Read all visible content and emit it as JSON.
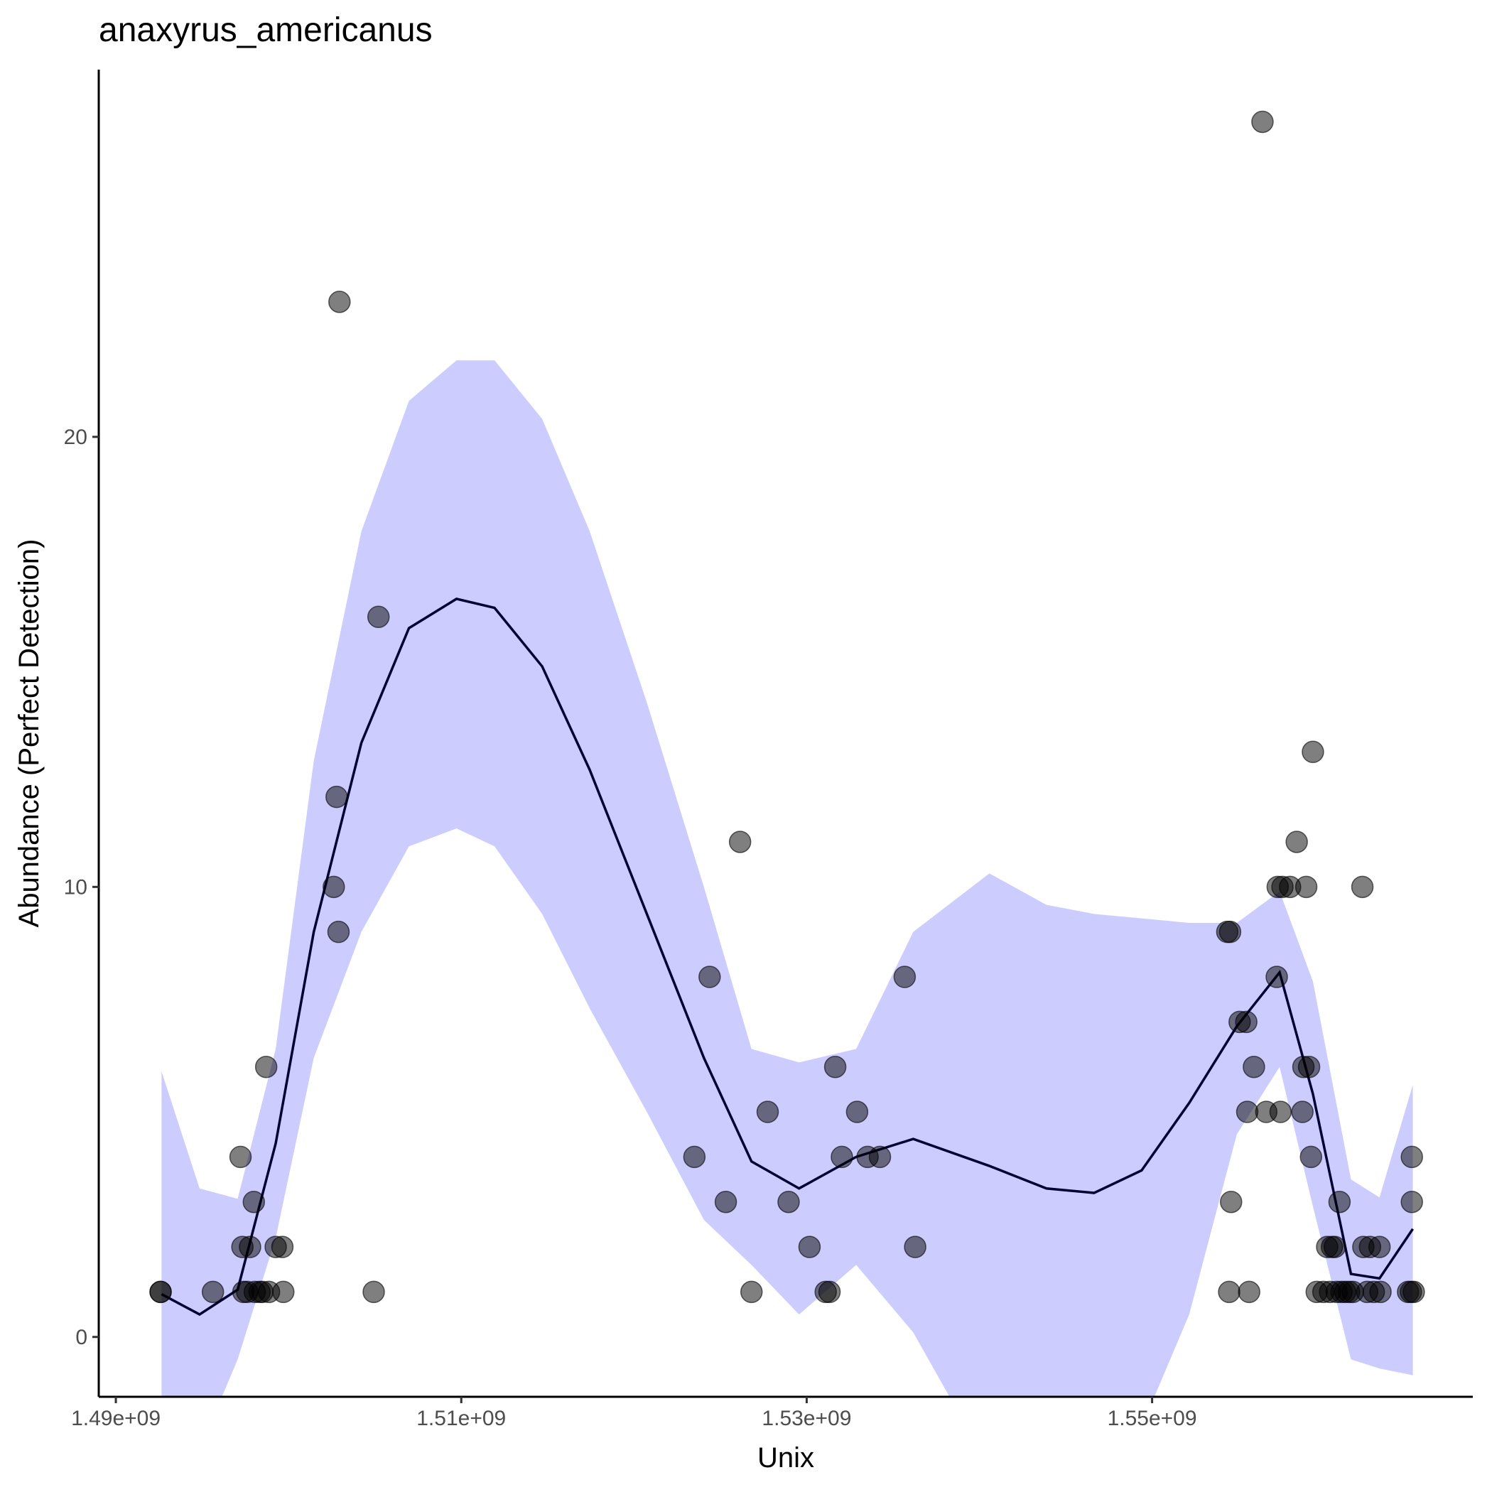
{
  "chart_data": {
    "type": "scatter",
    "title": "anaxyrus_americanus",
    "x_label": "Unix",
    "y_label": "Abundance (Perfect Detection)",
    "xlim": [
      1489010000,
      1568570000
    ],
    "ylim": [
      -1.33,
      28.16
    ],
    "xticks": [
      {
        "value": 1490000000,
        "label": "1.49e+09"
      },
      {
        "value": 1510000000,
        "label": "1.51e+09"
      },
      {
        "value": 1530000000,
        "label": "1.53e+09"
      },
      {
        "value": 1550000000,
        "label": "1.55e+09"
      }
    ],
    "yticks": [
      0,
      10,
      20
    ],
    "grid": false,
    "point_color": "#000000",
    "band_color": "#ccccff",
    "line_color": "#000033",
    "points": {
      "x": [
        1492590000,
        1492590000,
        1495620000,
        1497218000,
        1497328000,
        1497383000,
        1497603000,
        1497769000,
        1497989000,
        1498044000,
        1498319000,
        1498485000,
        1498705000,
        1498870000,
        1499256000,
        1499642000,
        1499697000,
        1502617000,
        1502782000,
        1502892000,
        1502948000,
        1504931000,
        1505206000,
        1523498000,
        1524380000,
        1525317000,
        1526143000,
        1526804000,
        1527741000,
        1528953000,
        1530165000,
        1531102000,
        1531322000,
        1531653000,
        1532038000,
        1532920000,
        1533526000,
        1534242000,
        1535675000,
        1536281000,
        1554352000,
        1554517000,
        1554462000,
        1554573000,
        1555068000,
        1555454000,
        1555509000,
        1555619000,
        1555895000,
        1556391000,
        1556611000,
        1557217000,
        1557272000,
        1557438000,
        1557548000,
        1557988000,
        1558374000,
        1558705000,
        1558760000,
        1558925000,
        1559090000,
        1559201000,
        1559311000,
        1559531000,
        1559917000,
        1560137000,
        1560303000,
        1560413000,
        1560578000,
        1560688000,
        1560853000,
        1560964000,
        1561184000,
        1561404000,
        1561625000,
        1562176000,
        1562231000,
        1562451000,
        1562617000,
        1562837000,
        1563167000,
        1563223000,
        1564820000,
        1564986000,
        1565041000,
        1565041000,
        1565151000
      ],
      "y": [
        1,
        1,
        1,
        4,
        2,
        1,
        1,
        2,
        3,
        1,
        1,
        1,
        6,
        1,
        2,
        2,
        1,
        10,
        12,
        9,
        23,
        1,
        16,
        4,
        8,
        3,
        11,
        1,
        5,
        3,
        2,
        1,
        1,
        6,
        4,
        5,
        4,
        4,
        8,
        2,
        9,
        9,
        1,
        3,
        7,
        7,
        5,
        1,
        6,
        27,
        5,
        8,
        10,
        5,
        10,
        10,
        11,
        5,
        6,
        10,
        6,
        4,
        13,
        1,
        1,
        2,
        1,
        2,
        2,
        1,
        3,
        1,
        1,
        1,
        1,
        10,
        2,
        1,
        2,
        1,
        2,
        1,
        1,
        1,
        4,
        3,
        1
      ]
    },
    "smooth": {
      "x": [
        1492645000,
        1494848000,
        1497052000,
        1499256000,
        1501460000,
        1504215000,
        1506970000,
        1509724000,
        1511928000,
        1514683000,
        1517438000,
        1520744000,
        1524049000,
        1526804000,
        1529559000,
        1532865000,
        1536170000,
        1540578000,
        1543884000,
        1546639000,
        1549393000,
        1552148000,
        1554903000,
        1557383000,
        1559311000,
        1561515000,
        1563167000,
        1565096000
      ],
      "y": [
        0.95,
        0.5,
        1.05,
        4.3,
        9.0,
        13.2,
        15.75,
        16.4,
        16.2,
        14.9,
        12.6,
        9.4,
        6.2,
        3.9,
        3.3,
        4.0,
        4.4,
        3.8,
        3.3,
        3.2,
        3.7,
        5.2,
        6.9,
        8.1,
        5.4,
        1.4,
        1.3,
        2.4
      ],
      "upper": [
        5.9,
        3.3,
        3.07,
        6.4,
        12.8,
        17.9,
        20.8,
        21.7,
        21.7,
        20.4,
        17.9,
        14.1,
        10.0,
        6.4,
        6.1,
        6.4,
        9.0,
        10.3,
        9.6,
        9.4,
        9.3,
        9.2,
        9.2,
        9.9,
        7.9,
        3.5,
        3.1,
        5.6
      ],
      "lower": [
        -3.0,
        -2.5,
        -0.5,
        2.2,
        6.2,
        9.0,
        10.9,
        11.3,
        10.9,
        9.4,
        7.3,
        5.0,
        2.6,
        1.6,
        0.5,
        1.6,
        0.1,
        -2.9,
        -3.3,
        -3.3,
        -2.0,
        0.5,
        4.5,
        6.0,
        2.9,
        -0.5,
        -0.7,
        -0.85
      ]
    }
  }
}
